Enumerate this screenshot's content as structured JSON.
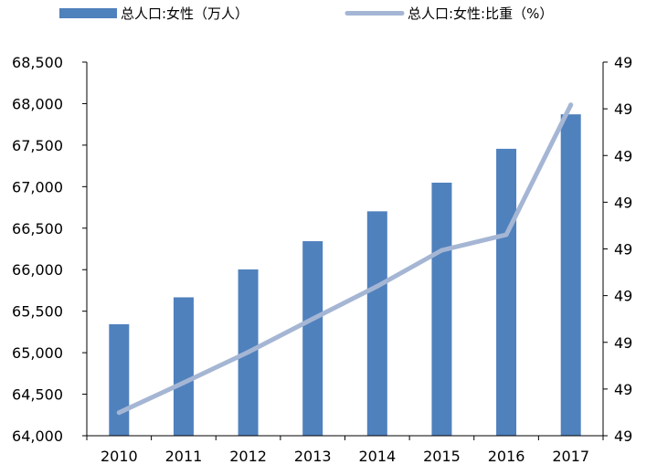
{
  "chart_data": {
    "type": "bar",
    "categories": [
      "2010",
      "2011",
      "2012",
      "2013",
      "2014",
      "2015",
      "2016",
      "2017"
    ],
    "series": [
      {
        "name": "总人口:女性（万人）",
        "type": "bar",
        "axis": "left",
        "color": "#4f81bd",
        "values": [
          65343,
          65667,
          66003,
          66343,
          66703,
          67048,
          67456,
          67871
        ]
      },
      {
        "name": "总人口:女性:比重（%）",
        "type": "line",
        "axis": "right",
        "color": "#a5b6d4",
        "values": [
          48.734,
          48.778,
          48.823,
          48.872,
          48.92,
          48.973,
          48.996,
          49.187
        ]
      }
    ],
    "y_left": {
      "ylim": [
        64000,
        68500
      ],
      "ticks": [
        64000,
        64500,
        65000,
        65500,
        66000,
        66500,
        67000,
        67500,
        68000,
        68500
      ],
      "tick_labels": [
        "64,000",
        "64,500",
        "65,000",
        "65,500",
        "66,000",
        "66,500",
        "67,000",
        "67,500",
        "68,000",
        "68,500"
      ]
    },
    "y_right": {
      "ylim": [
        48.7,
        49.25
      ],
      "tick_labels": [
        "49",
        "49",
        "49",
        "49",
        "49",
        "49",
        "49",
        "49",
        "49"
      ]
    },
    "title": "",
    "xlabel": "",
    "ylabel": "",
    "grid": false,
    "legend_position": "top"
  }
}
